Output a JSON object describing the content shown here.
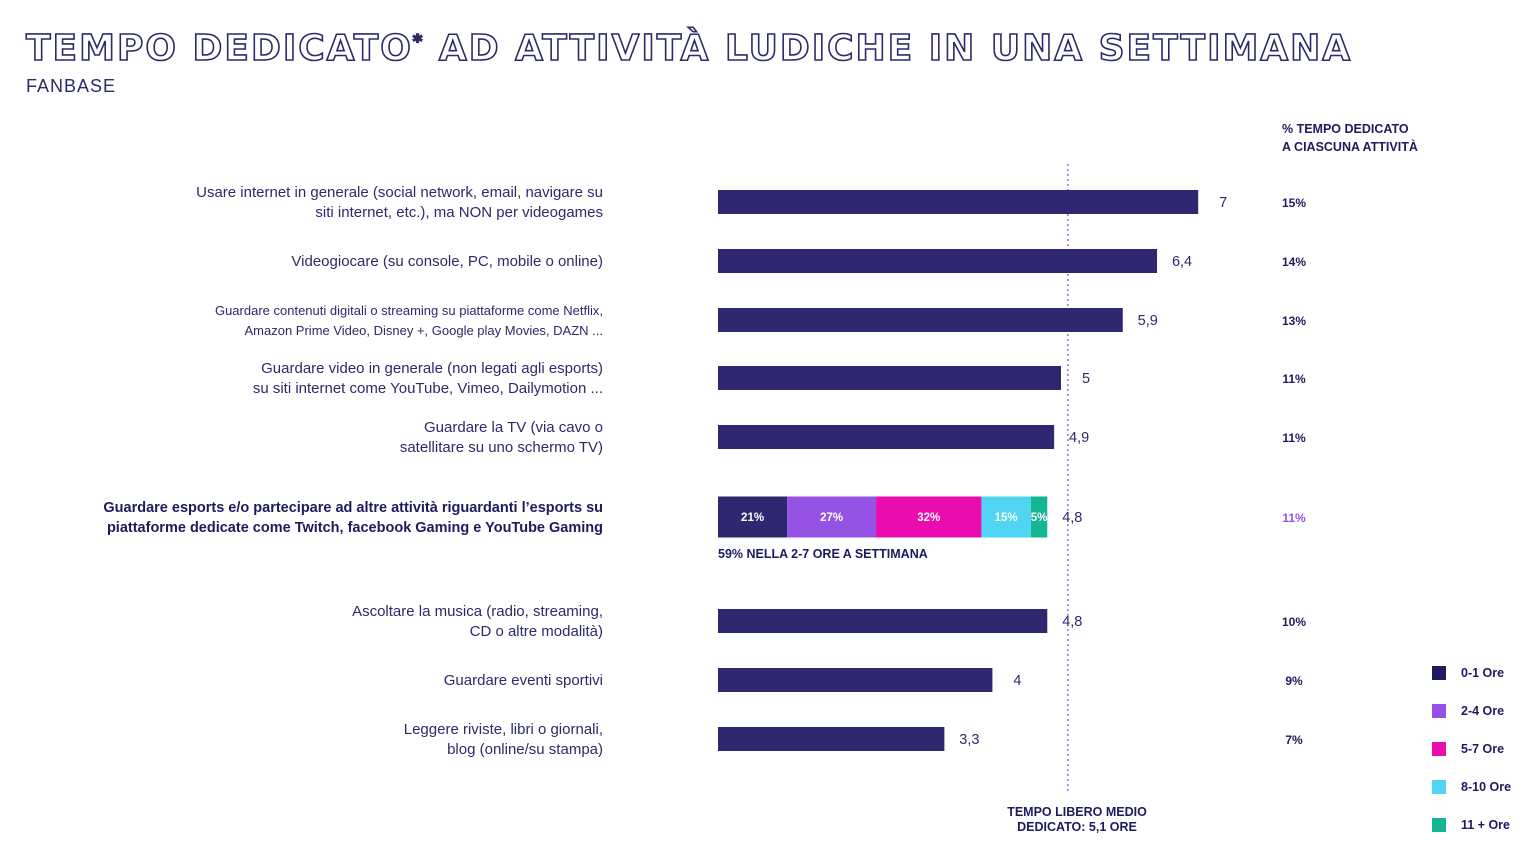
{
  "header": {
    "title": "TEMPO DEDICATO",
    "title_mark": "*",
    "title_rest": " AD ATTIVITÀ LUDICHE IN UNA SETTIMANA",
    "subtitle": "FANBASE",
    "pct_column_title": "% TEMPO DEDICATO\nA CIASCUNA ATTIVITÀ"
  },
  "chart_data": {
    "type": "bar",
    "orientation": "horizontal",
    "title": "TEMPO DEDICATO* AD ATTIVITÀ LUDICHE IN UNA SETTIMANA",
    "unit": "ore a settimana",
    "xlim": [
      0,
      7.5
    ],
    "bar_color": "#2f2870",
    "categories": [
      "Usare internet in generale (social network, email, navigare su\nsiti internet, etc.), ma NON per videogames",
      "Videogiocare (su console, PC, mobile o online)",
      "Guardare contenuti digitali o streaming su piattaforme come Netflix,\nAmazon Prime Video, Disney +, Google play Movies, DAZN ...",
      "Guardare video in generale (non legati agli esports)\nsu siti internet come YouTube, Vimeo, Dailymotion ...",
      "Guardare la TV (via cavo o\nsatellitare su uno schermo TV)",
      "Guardare esports e/o partecipare ad altre attività riguardanti l’esports su\npiattaforme dedicate come Twitch, facebook Gaming e YouTube Gaming",
      "Ascoltare la musica (radio, streaming,\nCD o altre modalità)",
      "Guardare eventi sportivi",
      "Leggere riviste, libri o giornali,\nblog (online/su stampa)"
    ],
    "values": [
      7,
      6.4,
      5.9,
      5,
      4.9,
      4.8,
      4.8,
      4,
      3.3
    ],
    "value_labels": [
      "7",
      "6,4",
      "5,9",
      "5",
      "4,9",
      "4,8",
      "4,8",
      "4",
      "3,3"
    ],
    "share_labels": [
      "15%",
      "14%",
      "13%",
      "11%",
      "11%",
      "11%",
      "10%",
      "9%",
      "7%"
    ],
    "highlight_index": 5,
    "highlight_breakdown": {
      "segments": [
        {
          "name": "0-1 Ore",
          "value": 21,
          "label": "21%",
          "color": "#2f2870"
        },
        {
          "name": "2-4 Ore",
          "value": 27,
          "label": "27%",
          "color": "#9553e6"
        },
        {
          "name": "5-7 Ore",
          "value": 32,
          "label": "32%",
          "color": "#ea0cae"
        },
        {
          "name": "8-10 Ore",
          "value": 15,
          "label": "15%",
          "color": "#4fd5f3"
        },
        {
          "name": "11 + Ore",
          "value": 5,
          "label": "5%",
          "color": "#14b592"
        }
      ],
      "note": "59% NELLA 2-7 ORE A SETTIMANA",
      "share_color": "#9553e6"
    },
    "average": {
      "value": 5.1,
      "label": "TEMPO LIBERO MEDIO\nDEDICATO: 5,1 ORE",
      "color": "#9553e6"
    }
  },
  "legend": {
    "items": [
      {
        "label": "0-1 Ore",
        "color": "#1d1b5e"
      },
      {
        "label": "2-4 Ore",
        "color": "#9553e6"
      },
      {
        "label": "5-7 Ore",
        "color": "#ea0cae"
      },
      {
        "label": "8-10 Ore",
        "color": "#4fd5f3"
      },
      {
        "label": "11 + Ore",
        "color": "#14b592"
      }
    ]
  }
}
